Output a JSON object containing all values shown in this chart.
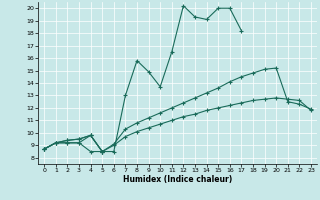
{
  "xlabel": "Humidex (Indice chaleur)",
  "xlim": [
    -0.5,
    23.5
  ],
  "ylim": [
    7.5,
    20.5
  ],
  "xticks": [
    0,
    1,
    2,
    3,
    4,
    5,
    6,
    7,
    8,
    9,
    10,
    11,
    12,
    13,
    14,
    15,
    16,
    17,
    18,
    19,
    20,
    21,
    22,
    23
  ],
  "yticks": [
    8,
    9,
    10,
    11,
    12,
    13,
    14,
    15,
    16,
    17,
    18,
    19,
    20
  ],
  "bg_color": "#c8e8e8",
  "line_color": "#1a6b5a",
  "series": [
    {
      "x": [
        0,
        1,
        2,
        3,
        4,
        5
      ],
      "y": [
        8.7,
        9.2,
        9.2,
        9.2,
        8.5,
        8.5
      ]
    },
    {
      "x": [
        0,
        1,
        2,
        3,
        4,
        5,
        6,
        7,
        8,
        9,
        10,
        11,
        12,
        13,
        14,
        15,
        16,
        17
      ],
      "y": [
        8.7,
        9.2,
        9.2,
        9.2,
        9.8,
        8.5,
        8.5,
        13.0,
        15.8,
        14.9,
        13.7,
        16.5,
        20.2,
        19.3,
        19.1,
        20.0,
        20.0,
        18.2
      ]
    },
    {
      "x": [
        0,
        1,
        2,
        3,
        4,
        5,
        6,
        7,
        8,
        9,
        10,
        11,
        12,
        13,
        14,
        15,
        16,
        17,
        18,
        19,
        20,
        21,
        22,
        23
      ],
      "y": [
        8.7,
        9.2,
        9.4,
        9.5,
        9.8,
        8.5,
        9.1,
        10.3,
        10.8,
        11.2,
        11.6,
        12.0,
        12.4,
        12.8,
        13.2,
        13.6,
        14.1,
        14.5,
        14.8,
        15.1,
        15.2,
        12.5,
        12.3,
        11.9
      ]
    },
    {
      "x": [
        0,
        1,
        2,
        3,
        4,
        5,
        6,
        7,
        8,
        9,
        10,
        11,
        12,
        13,
        14,
        15,
        16,
        17,
        18,
        19,
        20,
        21,
        22,
        23
      ],
      "y": [
        8.7,
        9.2,
        9.4,
        9.5,
        9.8,
        8.5,
        9.0,
        9.7,
        10.1,
        10.4,
        10.7,
        11.0,
        11.3,
        11.5,
        11.8,
        12.0,
        12.2,
        12.4,
        12.6,
        12.7,
        12.8,
        12.7,
        12.6,
        11.8
      ]
    }
  ]
}
